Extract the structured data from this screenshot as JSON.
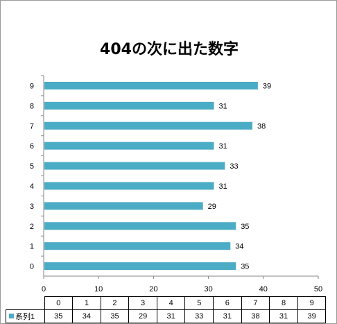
{
  "chart_data": {
    "type": "bar",
    "orientation": "horizontal",
    "title": "404の次に出た数字",
    "categories": [
      "0",
      "1",
      "2",
      "3",
      "4",
      "5",
      "6",
      "7",
      "8",
      "9"
    ],
    "series": [
      {
        "name": "系列1",
        "values": [
          35,
          34,
          35,
          29,
          31,
          33,
          31,
          38,
          31,
          39
        ]
      }
    ],
    "xlim": [
      0,
      50
    ],
    "x_ticks": [
      0,
      10,
      20,
      30,
      40,
      50
    ],
    "data_labels": true,
    "grid": false,
    "legend": "data-table-left",
    "data_table": true,
    "bar_color": "#4bacc6"
  }
}
